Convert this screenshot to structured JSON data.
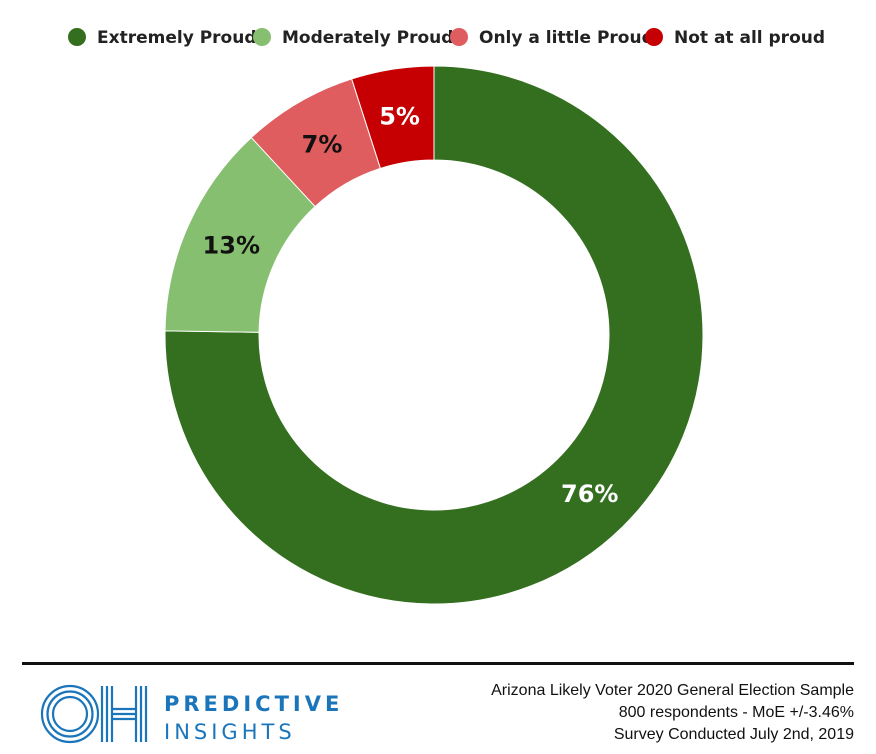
{
  "chart_data": {
    "type": "pie",
    "donut": true,
    "title": "",
    "legend_position": "top",
    "slices": [
      {
        "name": "Extremely Proud",
        "value": 76,
        "label": "76%",
        "color": "#346f1f",
        "label_color": "#ffffff"
      },
      {
        "name": "Moderately Proud",
        "value": 13,
        "label": "13%",
        "color": "#86bf6f",
        "label_color": "#111111"
      },
      {
        "name": "Only a little Proud",
        "value": 7,
        "label": "7%",
        "color": "#df5d5e",
        "label_color": "#111111"
      },
      {
        "name": "Not at all proud",
        "value": 5,
        "label": "5%",
        "color": "#c60002",
        "label_color": "#ffffff"
      }
    ]
  },
  "logo": {
    "word_1": "PREDICTIVE",
    "word_2": "INSIGHTS",
    "color": "#1a75bb"
  },
  "footer": {
    "line_1": "Arizona Likely Voter 2020 General Election Sample",
    "line_2": "800 respondents  - MoE +/-3.46%",
    "line_3": "Survey Conducted  July 2nd, 2019"
  }
}
